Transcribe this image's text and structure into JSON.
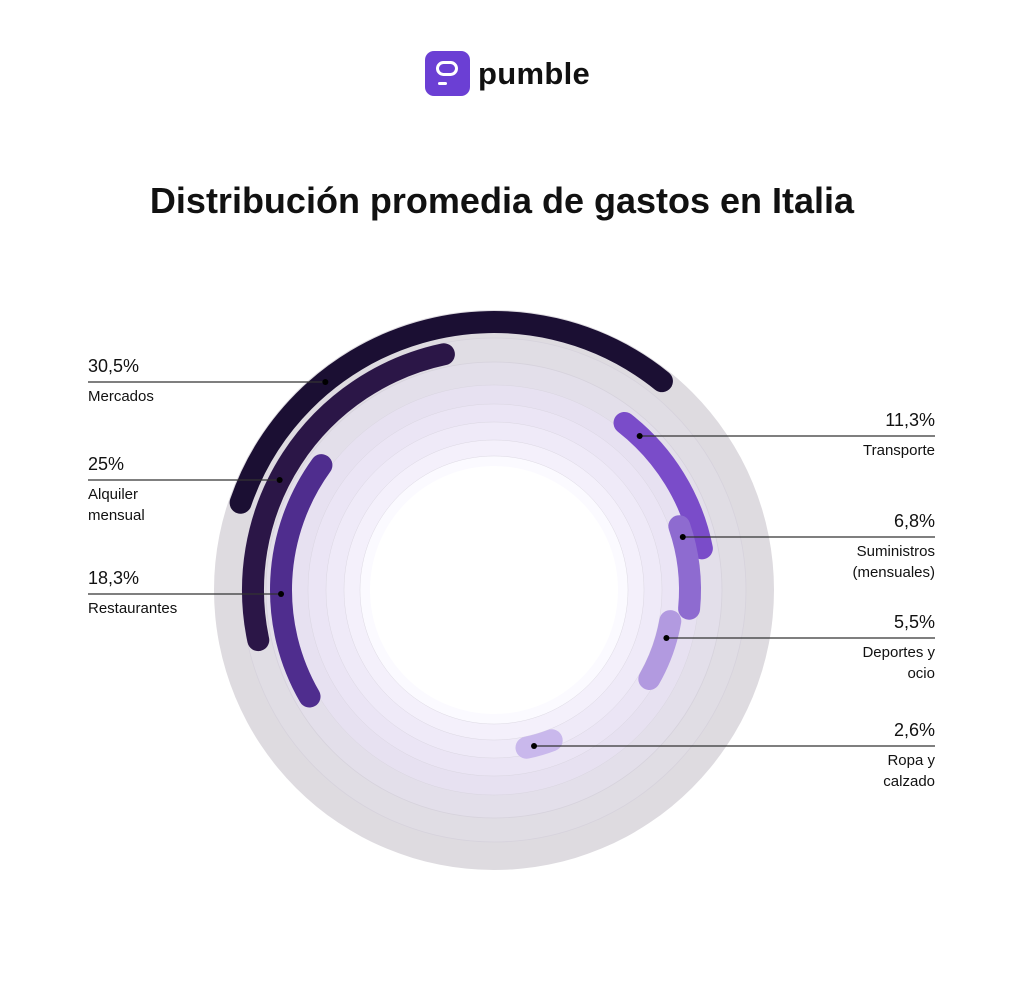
{
  "logo": {
    "text": "pumble",
    "color": "#6b3fd4"
  },
  "chart_data": {
    "type": "radial-bar",
    "title": "Distribución promedia de gastos en Italia",
    "unit": "%",
    "categories": [
      "Mercados",
      "Alquiler mensual",
      "Restaurantes",
      "Transporte",
      "Suministros (mensuales)",
      "Deportes y ocio",
      "Ropa y calzado"
    ],
    "values": [
      30.5,
      25,
      18.3,
      11.3,
      6.8,
      5.5,
      2.6
    ],
    "value_labels": [
      "30,5%",
      "25%",
      "18,3%",
      "11,3%",
      "6,8%",
      "5,5%",
      "2,6%"
    ],
    "label_lines": [
      [
        "Mercados"
      ],
      [
        "Alquiler",
        "mensual"
      ],
      [
        "Restaurantes"
      ],
      [
        "Transporte"
      ],
      [
        "Suministros",
        "(mensuales)"
      ],
      [
        "Deportes y",
        "ocio"
      ],
      [
        "Ropa y",
        "calzado"
      ]
    ],
    "colors": [
      "#1b0f33",
      "#2b1647",
      "#4f2d8e",
      "#7a4cc9",
      "#8e6bd0",
      "#b29ae0",
      "#c9b8ec"
    ],
    "background_color": "#dedbe0"
  }
}
